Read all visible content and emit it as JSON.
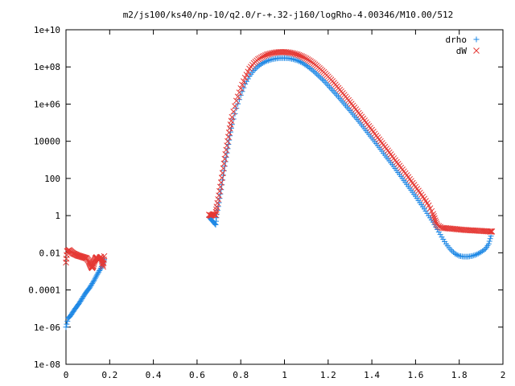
{
  "chart_data": {
    "type": "scatter",
    "title": "m2/js100/ks40/np-10/q2.0/r-+.32-j160/logRho-4.00346/M10.00/512",
    "xlabel": "",
    "ylabel": "",
    "xlim": [
      0,
      2
    ],
    "ylim": [
      1e-08,
      10000000000.0
    ],
    "y_scale": "log",
    "grid": false,
    "legend_position": "top-right",
    "x_ticks": [
      {
        "value": 0,
        "label": "0"
      },
      {
        "value": 0.2,
        "label": "0.2"
      },
      {
        "value": 0.4,
        "label": "0.4"
      },
      {
        "value": 0.6,
        "label": "0.6"
      },
      {
        "value": 0.8,
        "label": "0.8"
      },
      {
        "value": 1.0,
        "label": "1"
      },
      {
        "value": 1.2,
        "label": "1.2"
      },
      {
        "value": 1.4,
        "label": "1.4"
      },
      {
        "value": 1.6,
        "label": "1.6"
      },
      {
        "value": 1.8,
        "label": "1.8"
      },
      {
        "value": 2.0,
        "label": "2"
      }
    ],
    "y_ticks": [
      {
        "value": 1e-08,
        "label": "1e-08"
      },
      {
        "value": 1e-06,
        "label": "1e-06"
      },
      {
        "value": 0.0001,
        "label": "0.0001"
      },
      {
        "value": 0.01,
        "label": "0.01"
      },
      {
        "value": 1,
        "label": "1"
      },
      {
        "value": 100,
        "label": "100"
      },
      {
        "value": 10000,
        "label": "10000"
      },
      {
        "value": 1000000.0,
        "label": "1e+06"
      },
      {
        "value": 100000000.0,
        "label": "1e+08"
      },
      {
        "value": 10000000000.0,
        "label": "1e+10"
      }
    ],
    "series": [
      {
        "name": "drho",
        "marker": "plus",
        "color": "#1e88e5",
        "points": [
          [
            0.0,
            1e-06
          ],
          [
            0.01,
            3e-06
          ],
          [
            0.02,
            4e-06
          ],
          [
            0.03,
            6e-06
          ],
          [
            0.04,
            9e-06
          ],
          [
            0.05,
            1.3e-05
          ],
          [
            0.06,
            1.9e-05
          ],
          [
            0.07,
            2.9e-05
          ],
          [
            0.08,
            4.5e-05
          ],
          [
            0.09,
            6.9e-05
          ],
          [
            0.1,
            9.8e-05
          ],
          [
            0.11,
            0.00014
          ],
          [
            0.12,
            0.00022
          ],
          [
            0.13,
            0.00035
          ],
          [
            0.14,
            0.00058
          ],
          [
            0.15,
            0.00094
          ],
          [
            0.16,
            0.0015
          ],
          [
            0.17,
            0.0026
          ],
          [
            0.175,
            0.0043
          ],
          [
            0.655,
            0.85
          ],
          [
            0.665,
            0.6
          ],
          [
            0.675,
            0.45
          ],
          [
            0.685,
            0.32
          ],
          [
            0.69,
            1.2
          ],
          [
            0.7,
            5
          ],
          [
            0.71,
            25
          ],
          [
            0.72,
            150
          ],
          [
            0.73,
            800
          ],
          [
            0.74,
            4000
          ],
          [
            0.75,
            20000
          ],
          [
            0.76,
            80000
          ],
          [
            0.78,
            600000
          ],
          [
            0.8,
            3000000.0
          ],
          [
            0.82,
            12000000.0
          ],
          [
            0.84,
            32000000.0
          ],
          [
            0.86,
            65000000.0
          ],
          [
            0.88,
            110000000.0
          ],
          [
            0.9,
            160000000.0
          ],
          [
            0.92,
            210000000.0
          ],
          [
            0.94,
            250000000.0
          ],
          [
            0.96,
            280000000.0
          ],
          [
            0.98,
            300000000.0
          ],
          [
            1.0,
            300000000.0
          ],
          [
            1.02,
            290000000.0
          ],
          [
            1.04,
            260000000.0
          ],
          [
            1.06,
            220000000.0
          ],
          [
            1.08,
            170000000.0
          ],
          [
            1.1,
            120000000.0
          ],
          [
            1.12,
            80000000.0
          ],
          [
            1.14,
            50000000.0
          ],
          [
            1.16,
            30000000.0
          ],
          [
            1.18,
            18000000.0
          ],
          [
            1.2,
            10000000.0
          ],
          [
            1.22,
            5500000.0
          ],
          [
            1.24,
            3000000.0
          ],
          [
            1.26,
            1600000.0
          ],
          [
            1.28,
            850000
          ],
          [
            1.3,
            450000
          ],
          [
            1.32,
            230000
          ],
          [
            1.34,
            120000
          ],
          [
            1.36,
            60000
          ],
          [
            1.38,
            30000
          ],
          [
            1.4,
            15000
          ],
          [
            1.42,
            7500
          ],
          [
            1.44,
            3700
          ],
          [
            1.46,
            1800
          ],
          [
            1.48,
            900
          ],
          [
            1.5,
            440
          ],
          [
            1.52,
            210
          ],
          [
            1.54,
            100
          ],
          [
            1.56,
            48
          ],
          [
            1.58,
            23
          ],
          [
            1.6,
            11
          ],
          [
            1.62,
            5
          ],
          [
            1.64,
            2.3
          ],
          [
            1.66,
            1.0
          ],
          [
            1.68,
            0.45
          ],
          [
            1.7,
            0.18
          ],
          [
            1.72,
            0.07
          ],
          [
            1.74,
            0.03
          ],
          [
            1.76,
            0.015
          ],
          [
            1.78,
            0.009
          ],
          [
            1.8,
            0.0068
          ],
          [
            1.82,
            0.0062
          ],
          [
            1.84,
            0.0062
          ],
          [
            1.86,
            0.0068
          ],
          [
            1.88,
            0.0082
          ],
          [
            1.9,
            0.011
          ],
          [
            1.92,
            0.016
          ],
          [
            1.935,
            0.03
          ],
          [
            1.945,
            0.08
          ]
        ]
      },
      {
        "name": "dW",
        "marker": "cross",
        "color": "#e53935",
        "points": [
          [
            0.0,
            0.003
          ],
          [
            0.005,
            0.012
          ],
          [
            0.015,
            0.014
          ],
          [
            0.025,
            0.011
          ],
          [
            0.035,
            0.009
          ],
          [
            0.045,
            0.008
          ],
          [
            0.055,
            0.007
          ],
          [
            0.065,
            0.0065
          ],
          [
            0.075,
            0.006
          ],
          [
            0.085,
            0.0055
          ],
          [
            0.095,
            0.005
          ],
          [
            0.105,
            0.0035
          ],
          [
            0.11,
            0.0025
          ],
          [
            0.115,
            0.0018
          ],
          [
            0.12,
            0.0015
          ],
          [
            0.125,
            0.002
          ],
          [
            0.13,
            0.0035
          ],
          [
            0.135,
            0.005
          ],
          [
            0.14,
            0.0058
          ],
          [
            0.145,
            0.005
          ],
          [
            0.15,
            0.004
          ],
          [
            0.155,
            0.0055
          ],
          [
            0.16,
            0.006
          ],
          [
            0.165,
            0.0035
          ],
          [
            0.17,
            0.0018
          ],
          [
            0.175,
            0.0065
          ],
          [
            0.655,
            1.1
          ],
          [
            0.665,
            1.0
          ],
          [
            0.675,
            1.2
          ],
          [
            0.685,
            1.1
          ],
          [
            0.69,
            3
          ],
          [
            0.7,
            12
          ],
          [
            0.71,
            60
          ],
          [
            0.72,
            350
          ],
          [
            0.73,
            2000
          ],
          [
            0.74,
            10000
          ],
          [
            0.75,
            50000
          ],
          [
            0.76,
            200000
          ],
          [
            0.78,
            1500000.0
          ],
          [
            0.8,
            7000000.0
          ],
          [
            0.82,
            26000000.0
          ],
          [
            0.84,
            80000000.0
          ],
          [
            0.86,
            160000000.0
          ],
          [
            0.88,
            260000000.0
          ],
          [
            0.9,
            360000000.0
          ],
          [
            0.92,
            460000000.0
          ],
          [
            0.94,
            540000000.0
          ],
          [
            0.96,
            600000000.0
          ],
          [
            0.98,
            630000000.0
          ],
          [
            1.0,
            630000000.0
          ],
          [
            1.02,
            600000000.0
          ],
          [
            1.04,
            540000000.0
          ],
          [
            1.06,
            460000000.0
          ],
          [
            1.08,
            370000000.0
          ],
          [
            1.1,
            280000000.0
          ],
          [
            1.12,
            200000000.0
          ],
          [
            1.14,
            135000000.0
          ],
          [
            1.16,
            85000000.0
          ],
          [
            1.18,
            52000000.0
          ],
          [
            1.2,
            30000000.0
          ],
          [
            1.22,
            17000000.0
          ],
          [
            1.24,
            9000000.0
          ],
          [
            1.26,
            4800000.0
          ],
          [
            1.28,
            2500000.0
          ],
          [
            1.3,
            1300000.0
          ],
          [
            1.32,
            650000
          ],
          [
            1.34,
            330000
          ],
          [
            1.36,
            165000
          ],
          [
            1.38,
            82000
          ],
          [
            1.4,
            41000
          ],
          [
            1.42,
            20000
          ],
          [
            1.44,
            10000
          ],
          [
            1.46,
            5000
          ],
          [
            1.48,
            2500
          ],
          [
            1.5,
            1200
          ],
          [
            1.52,
            600
          ],
          [
            1.54,
            300
          ],
          [
            1.56,
            150
          ],
          [
            1.58,
            72
          ],
          [
            1.6,
            35
          ],
          [
            1.62,
            17
          ],
          [
            1.64,
            8
          ],
          [
            1.66,
            3.5
          ],
          [
            1.68,
            1.2
          ],
          [
            1.69,
            0.55
          ],
          [
            1.7,
            0.3
          ],
          [
            1.72,
            0.22
          ],
          [
            1.74,
            0.21
          ],
          [
            1.76,
            0.2
          ],
          [
            1.78,
            0.19
          ],
          [
            1.8,
            0.18
          ],
          [
            1.82,
            0.17
          ],
          [
            1.84,
            0.165
          ],
          [
            1.86,
            0.16
          ],
          [
            1.88,
            0.155
          ],
          [
            1.9,
            0.15
          ],
          [
            1.92,
            0.145
          ],
          [
            1.94,
            0.14
          ],
          [
            1.95,
            0.14
          ]
        ]
      }
    ]
  }
}
